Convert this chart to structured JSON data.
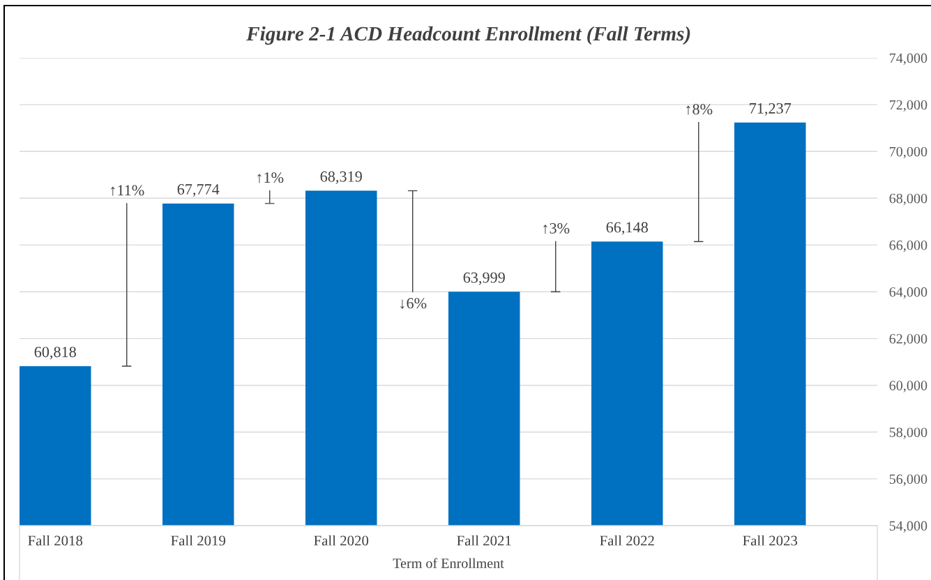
{
  "chart_data": {
    "type": "bar",
    "title": "Figure 2-1 ACD Headcount Enrollment (Fall Terms)",
    "xlabel": "Term of Enrollment",
    "categories": [
      "Fall 2018",
      "Fall 2019",
      "Fall 2020",
      "Fall 2021",
      "Fall 2022",
      "Fall 2023"
    ],
    "values": [
      60818,
      67774,
      68319,
      63999,
      66148,
      71237
    ],
    "color": "#0070c0",
    "value_labels": [
      "60,818",
      "67,774",
      "68,319",
      "63,999",
      "66,148",
      "71,237"
    ],
    "ylim": [
      54000,
      74000
    ],
    "yticks": [
      {
        "value": 54000,
        "label": "54,000"
      },
      {
        "value": 56000,
        "label": "56,000"
      },
      {
        "value": 58000,
        "label": "58,000"
      },
      {
        "value": 60000,
        "label": "60,000"
      },
      {
        "value": 62000,
        "label": "62,000"
      },
      {
        "value": 64000,
        "label": "64,000"
      },
      {
        "value": 66000,
        "label": "66,000"
      },
      {
        "value": 68000,
        "label": "68,000"
      },
      {
        "value": 70000,
        "label": "70,000"
      },
      {
        "value": 72000,
        "label": "72,000"
      },
      {
        "value": 74000,
        "label": "74,000"
      }
    ],
    "grid": "y",
    "annotations": [
      "↑11%",
      "↑1%",
      "↓6%",
      "↑3%",
      "↑8%"
    ]
  }
}
